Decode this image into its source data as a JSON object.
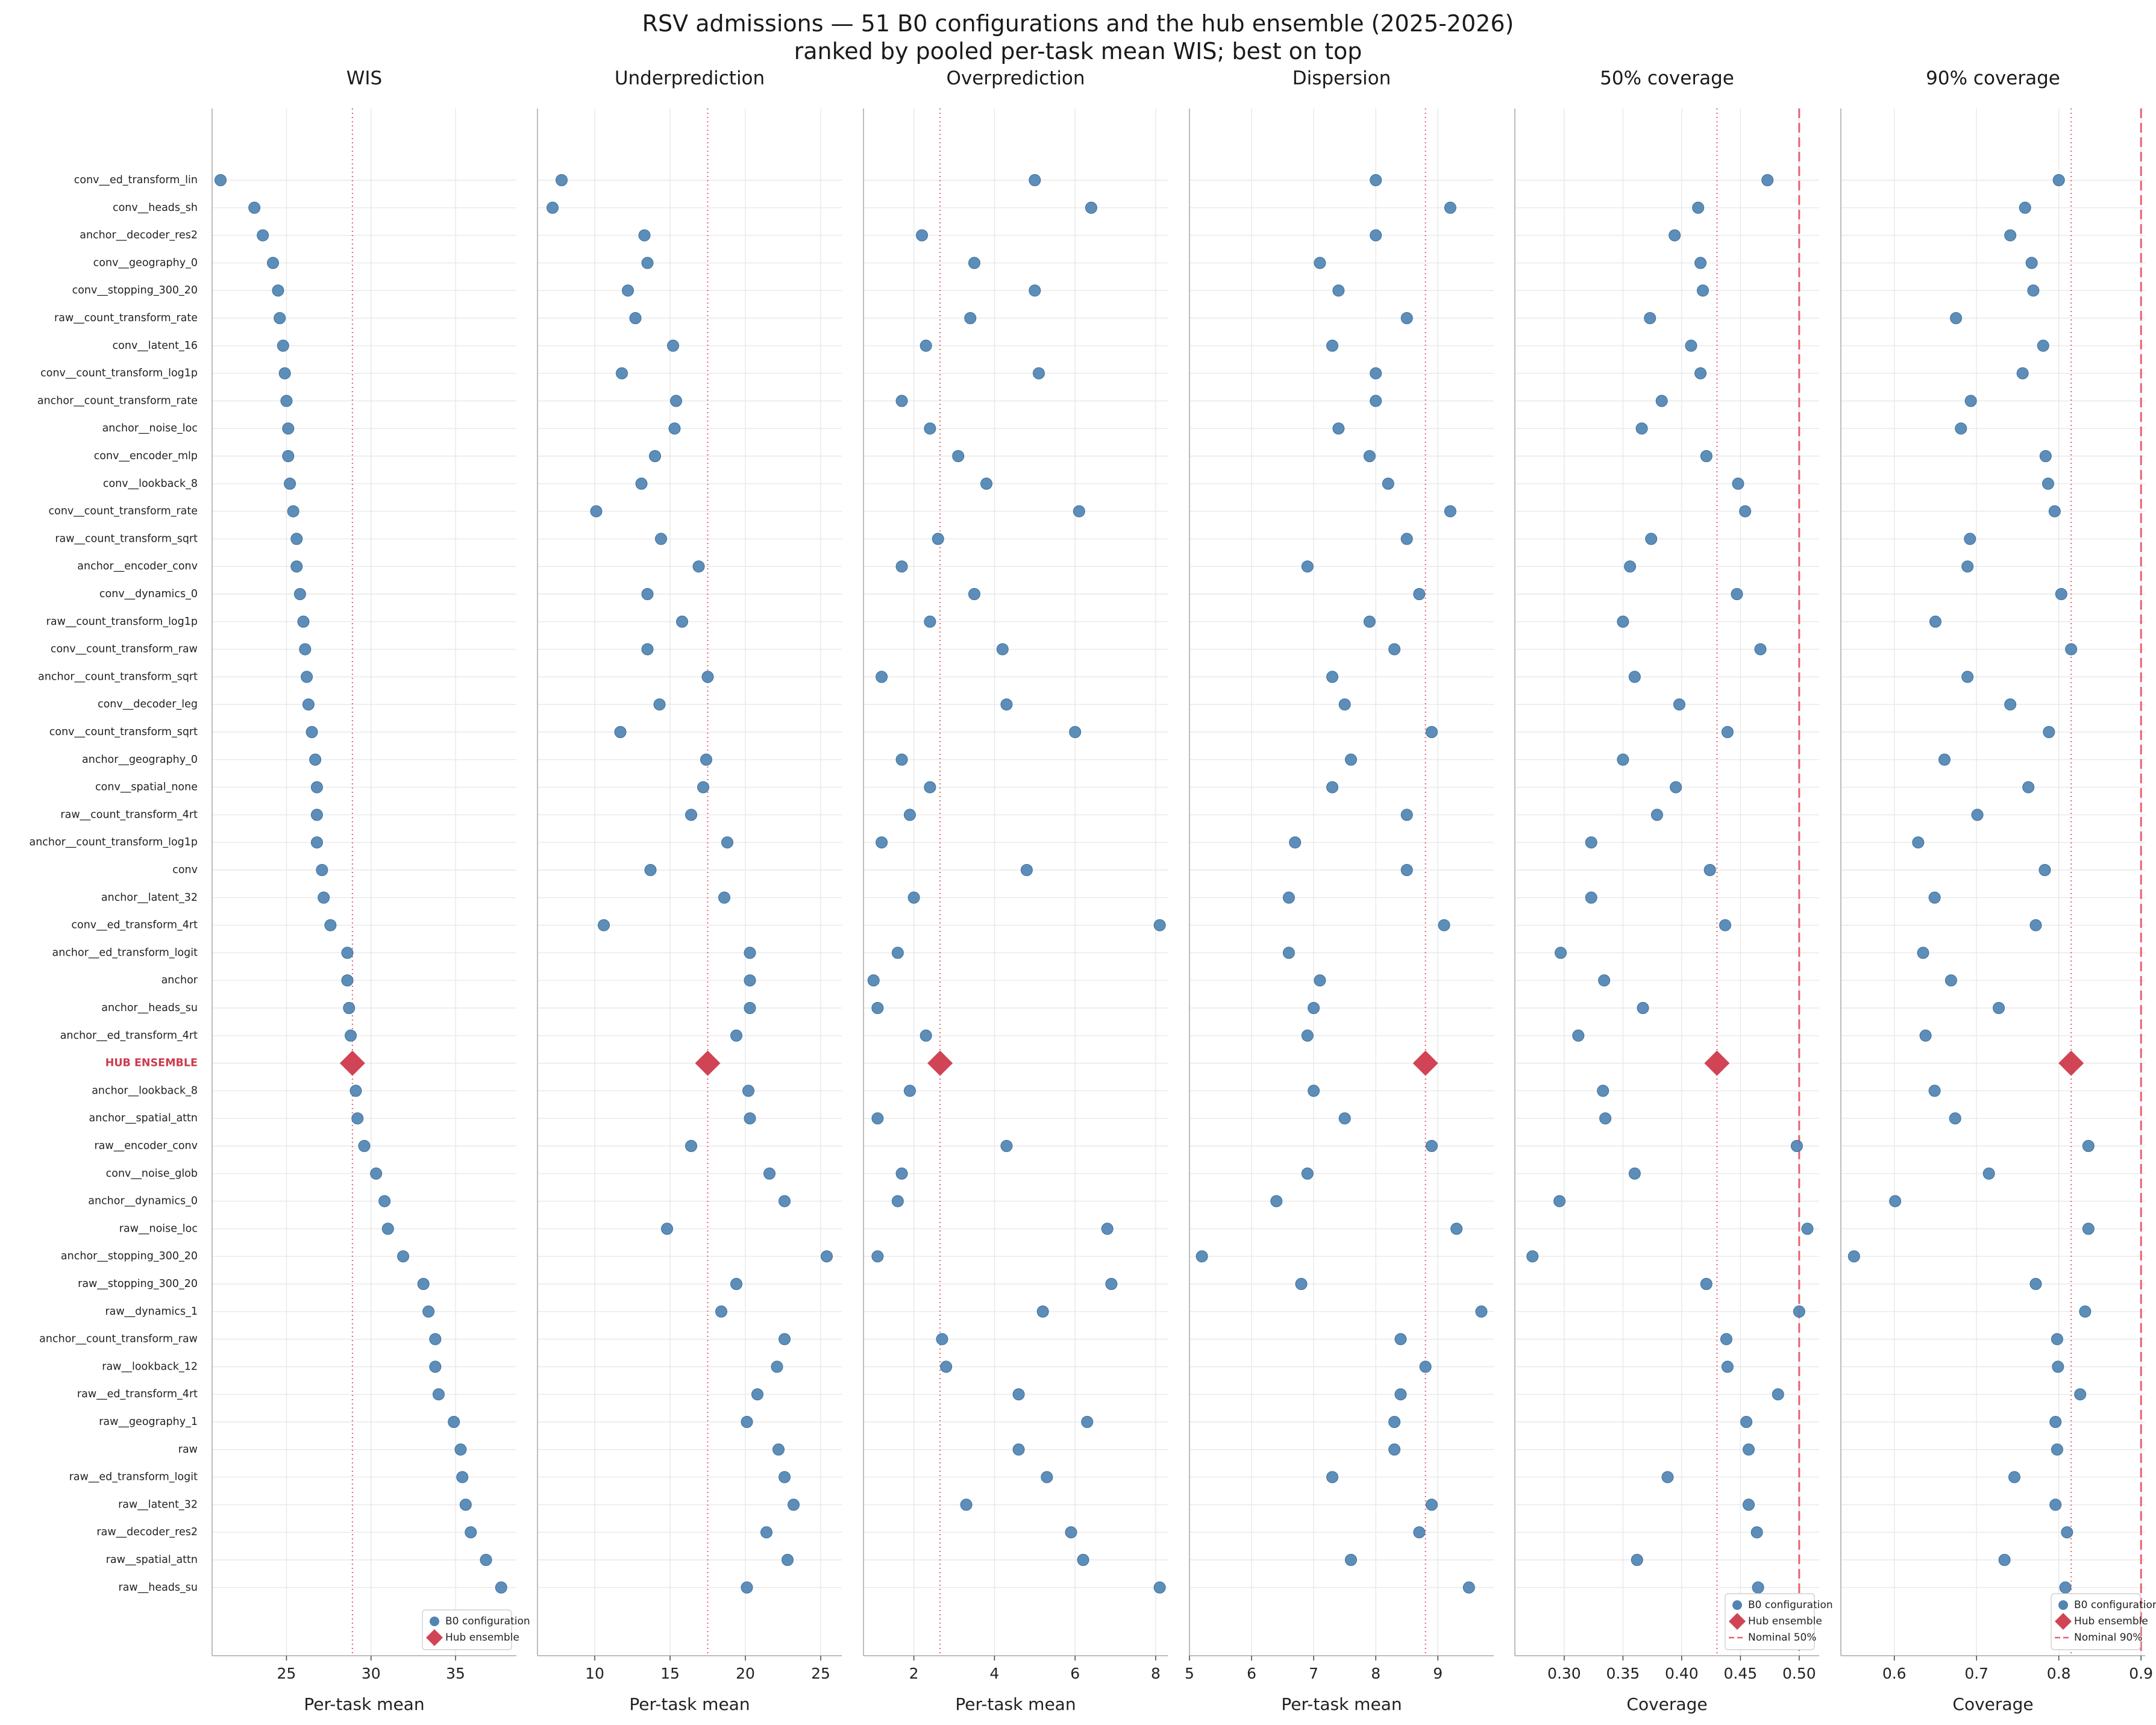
{
  "figure": {
    "title_line1": "RSV admissions — 51 B0 configurations and the hub ensemble (2025-2026)",
    "title_line2": "ranked by pooled per-task mean WIS; best on top"
  },
  "colors": {
    "dot": "#4f84b3",
    "hub": "#d14456",
    "ref": "#e8616f",
    "grid": "#e8e8e8"
  },
  "legend": {
    "b0": "B0 configuration",
    "hub": "Hub ensemble",
    "nominal50": "Nominal 50%",
    "nominal90": "Nominal 90%"
  },
  "chart_data": {
    "type": "scatter",
    "rows": [
      "conv__ed_transform_lin",
      "conv__heads_sh",
      "anchor__decoder_res2",
      "conv__geography_0",
      "conv__stopping_300_20",
      "raw__count_transform_rate",
      "conv__latent_16",
      "conv__count_transform_log1p",
      "anchor__count_transform_rate",
      "anchor__noise_loc",
      "conv__encoder_mlp",
      "conv__lookback_8",
      "conv__count_transform_rate",
      "raw__count_transform_sqrt",
      "anchor__encoder_conv",
      "conv__dynamics_0",
      "raw__count_transform_log1p",
      "conv__count_transform_raw",
      "anchor__count_transform_sqrt",
      "conv__decoder_leg",
      "conv__count_transform_sqrt",
      "anchor__geography_0",
      "conv__spatial_none",
      "raw__count_transform_4rt",
      "anchor__count_transform_log1p",
      "conv",
      "anchor__latent_32",
      "conv__ed_transform_4rt",
      "anchor__ed_transform_logit",
      "anchor",
      "anchor__heads_su",
      "anchor__ed_transform_4rt",
      "HUB ENSEMBLE",
      "anchor__lookback_8",
      "anchor__spatial_attn",
      "raw__encoder_conv",
      "conv__noise_glob",
      "anchor__dynamics_0",
      "raw__noise_loc",
      "anchor__stopping_300_20",
      "raw__stopping_300_20",
      "raw__dynamics_1",
      "anchor__count_transform_raw",
      "raw__lookback_12",
      "raw__ed_transform_4rt",
      "raw__geography_1",
      "raw",
      "raw__ed_transform_logit",
      "raw__latent_32",
      "raw__decoder_res2",
      "raw__spatial_attn",
      "raw__heads_su"
    ],
    "hub_row_index": 32,
    "panels": [
      {
        "title": "WIS",
        "xlabel": "Per-task mean",
        "xlim": [
          20.6,
          38.6
        ],
        "ticks": [
          25,
          30,
          35
        ],
        "reference": 28.9,
        "nominal": null,
        "legend": "lower-right",
        "values": [
          21.1,
          23.1,
          23.6,
          24.2,
          24.5,
          24.6,
          24.8,
          24.9,
          25.0,
          25.1,
          25.1,
          25.2,
          25.4,
          25.6,
          25.6,
          25.8,
          26.0,
          26.1,
          26.2,
          26.3,
          26.5,
          26.7,
          26.8,
          26.8,
          26.8,
          27.1,
          27.2,
          27.6,
          28.6,
          28.6,
          28.7,
          28.8,
          28.9,
          29.1,
          29.2,
          29.6,
          30.3,
          30.8,
          31.0,
          31.9,
          33.1,
          33.4,
          33.8,
          33.8,
          34.0,
          34.9,
          35.3,
          35.4,
          35.6,
          35.9,
          36.8,
          37.7
        ]
      },
      {
        "title": "Underprediction",
        "xlabel": "Per-task mean",
        "xlim": [
          6.2,
          26.4
        ],
        "ticks": [
          10,
          15,
          20,
          25
        ],
        "reference": 17.5,
        "nominal": null,
        "legend": null,
        "values": [
          7.8,
          7.2,
          13.3,
          13.5,
          12.2,
          12.7,
          15.2,
          11.8,
          15.4,
          15.3,
          14.0,
          13.1,
          10.1,
          14.4,
          16.9,
          13.5,
          15.8,
          13.5,
          17.5,
          14.3,
          11.7,
          17.4,
          17.2,
          16.4,
          18.8,
          13.7,
          18.6,
          10.6,
          20.3,
          20.3,
          20.3,
          19.4,
          17.5,
          20.2,
          20.3,
          16.4,
          21.6,
          22.6,
          14.8,
          25.4,
          19.4,
          18.4,
          22.6,
          22.1,
          20.8,
          20.1,
          22.2,
          22.6,
          23.2,
          21.4,
          22.8,
          20.1
        ]
      },
      {
        "title": "Overprediction",
        "xlabel": "Per-task mean",
        "xlim": [
          0.75,
          8.3
        ],
        "ticks": [
          2,
          4,
          6,
          8
        ],
        "reference": 2.65,
        "nominal": null,
        "legend": null,
        "values": [
          5.0,
          6.4,
          2.2,
          3.5,
          5.0,
          3.4,
          2.3,
          5.1,
          1.7,
          2.4,
          3.1,
          3.8,
          6.1,
          2.6,
          1.7,
          3.5,
          2.4,
          4.2,
          1.2,
          4.3,
          6.0,
          1.7,
          2.4,
          1.9,
          1.2,
          4.8,
          2.0,
          8.1,
          1.6,
          1.0,
          1.1,
          2.3,
          2.65,
          1.9,
          1.1,
          4.3,
          1.7,
          1.6,
          6.8,
          1.1,
          6.9,
          5.2,
          2.7,
          2.8,
          4.6,
          6.3,
          4.6,
          5.3,
          3.3,
          5.9,
          6.2,
          8.1
        ]
      },
      {
        "title": "Dispersion",
        "xlabel": "Per-task mean",
        "xlim": [
          5.0,
          9.9
        ],
        "ticks": [
          5,
          6,
          7,
          8,
          9
        ],
        "reference": 8.8,
        "nominal": null,
        "legend": null,
        "values": [
          8.0,
          9.2,
          8.0,
          7.1,
          7.4,
          8.5,
          7.3,
          8.0,
          8.0,
          7.4,
          7.9,
          8.2,
          9.2,
          8.5,
          6.9,
          8.7,
          7.9,
          8.3,
          7.3,
          7.5,
          8.9,
          7.6,
          7.3,
          8.5,
          6.7,
          8.5,
          6.6,
          9.1,
          6.6,
          7.1,
          7.0,
          6.9,
          8.8,
          7.0,
          7.5,
          8.9,
          6.9,
          6.4,
          9.3,
          5.2,
          6.8,
          9.7,
          8.4,
          8.8,
          8.4,
          8.3,
          8.3,
          7.3,
          8.9,
          8.7,
          7.6,
          9.5
        ]
      },
      {
        "title": "50% coverage",
        "xlabel": "Coverage",
        "xlim": [
          0.258,
          0.517
        ],
        "ticks": [
          0.3,
          0.35,
          0.4,
          0.45,
          0.5
        ],
        "reference": 0.43,
        "nominal": 0.5,
        "legend": "lower-right",
        "values": [
          0.473,
          0.414,
          0.394,
          0.416,
          0.418,
          0.373,
          0.408,
          0.416,
          0.383,
          0.366,
          0.421,
          0.448,
          0.454,
          0.374,
          0.356,
          0.447,
          0.35,
          0.467,
          0.36,
          0.398,
          0.439,
          0.35,
          0.395,
          0.379,
          0.323,
          0.424,
          0.323,
          0.437,
          0.297,
          0.334,
          0.367,
          0.312,
          0.43,
          0.333,
          0.335,
          0.498,
          0.36,
          0.296,
          0.507,
          0.273,
          0.421,
          0.5,
          0.438,
          0.439,
          0.482,
          0.455,
          0.457,
          0.388,
          0.457,
          0.464,
          0.362,
          0.465
        ]
      },
      {
        "title": "90% coverage",
        "xlabel": "Coverage",
        "xlim": [
          0.535,
          0.905
        ],
        "ticks": [
          0.6,
          0.7,
          0.8,
          0.9
        ],
        "reference": 0.815,
        "nominal": 0.9,
        "legend": "lower-right",
        "values": [
          0.8,
          0.759,
          0.741,
          0.767,
          0.769,
          0.675,
          0.781,
          0.756,
          0.693,
          0.681,
          0.784,
          0.787,
          0.795,
          0.692,
          0.689,
          0.803,
          0.65,
          0.815,
          0.689,
          0.741,
          0.788,
          0.661,
          0.763,
          0.701,
          0.629,
          0.783,
          0.649,
          0.772,
          0.635,
          0.669,
          0.727,
          0.638,
          0.815,
          0.649,
          0.674,
          0.836,
          0.715,
          0.601,
          0.836,
          0.551,
          0.772,
          0.832,
          0.798,
          0.799,
          0.826,
          0.796,
          0.798,
          0.746,
          0.796,
          0.81,
          0.734,
          0.808
        ]
      }
    ]
  }
}
